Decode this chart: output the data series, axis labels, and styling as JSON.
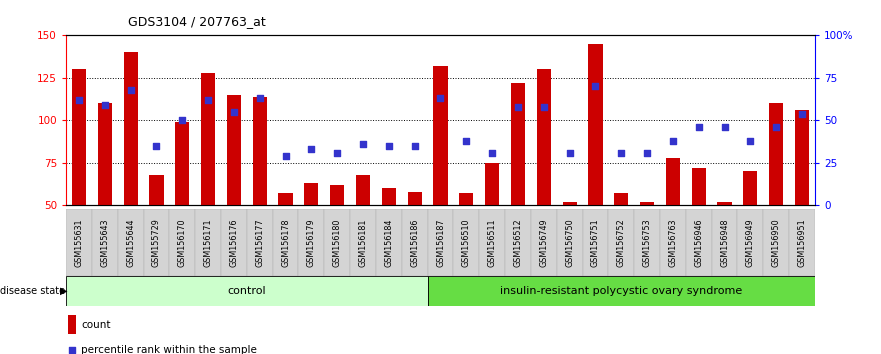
{
  "title": "GDS3104 / 207763_at",
  "samples": [
    "GSM155631",
    "GSM155643",
    "GSM155644",
    "GSM155729",
    "GSM156170",
    "GSM156171",
    "GSM156176",
    "GSM156177",
    "GSM156178",
    "GSM156179",
    "GSM156180",
    "GSM156181",
    "GSM156184",
    "GSM156186",
    "GSM156187",
    "GSM156510",
    "GSM156511",
    "GSM156512",
    "GSM156749",
    "GSM156750",
    "GSM156751",
    "GSM156752",
    "GSM156753",
    "GSM156763",
    "GSM156946",
    "GSM156948",
    "GSM156949",
    "GSM156950",
    "GSM156951"
  ],
  "bar_values": [
    130,
    110,
    140,
    68,
    99,
    128,
    115,
    114,
    57,
    63,
    62,
    68,
    60,
    58,
    132,
    57,
    75,
    122,
    130,
    52,
    145,
    57,
    52,
    78,
    72,
    52,
    70,
    110,
    106
  ],
  "percentile_right": [
    62,
    59,
    68,
    35,
    50,
    62,
    55,
    63,
    29,
    33,
    31,
    36,
    35,
    35,
    63,
    38,
    31,
    58,
    58,
    31,
    70,
    31,
    31,
    38,
    46,
    46,
    38,
    46,
    54
  ],
  "control_count": 14,
  "disease_count": 15,
  "control_label": "control",
  "disease_label": "insulin-resistant polycystic ovary syndrome",
  "ylim_left": [
    50,
    150
  ],
  "ylim_right": [
    0,
    100
  ],
  "yticks_left": [
    50,
    75,
    100,
    125,
    150
  ],
  "yticks_right": [
    0,
    25,
    50,
    75,
    100
  ],
  "bar_color": "#cc0000",
  "dot_color": "#3333cc",
  "control_bg": "#ccffcc",
  "disease_bg": "#66dd44",
  "bar_width": 0.55,
  "dot_size": 22
}
